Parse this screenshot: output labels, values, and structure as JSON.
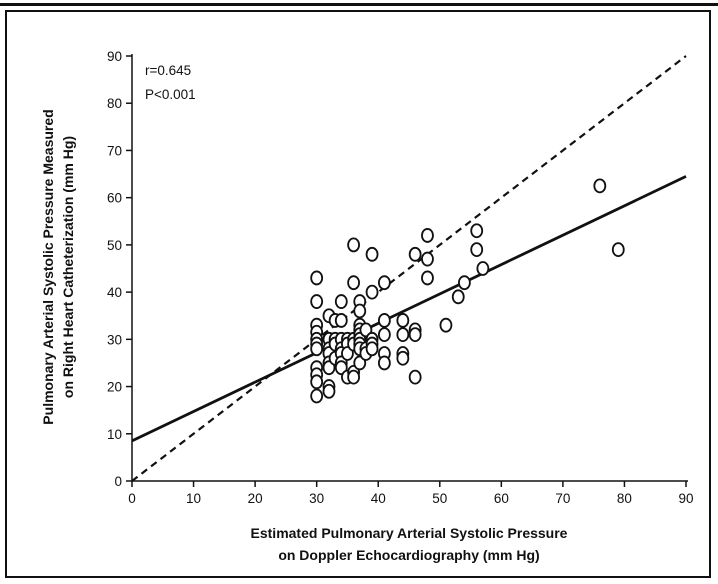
{
  "chart_data": {
    "type": "scatter",
    "xlabel_line1": "Estimated Pulmonary Arterial Systolic Pressure",
    "xlabel_line2": "on Doppler Echocardiography (mm Hg)",
    "ylabel_line1": "Pulmonary Arterial Systolic Pressure Measured",
    "ylabel_line2": "on Right Heart Catheterization (mm Hg)",
    "xlim": [
      0,
      90
    ],
    "ylim": [
      0,
      90
    ],
    "xticks": [
      "0",
      "10",
      "20",
      "30",
      "40",
      "50",
      "60",
      "70",
      "80",
      "90"
    ],
    "yticks": [
      "0",
      "10",
      "20",
      "30",
      "40",
      "50",
      "60",
      "70",
      "80",
      "90"
    ],
    "annotations": {
      "r": "r=0.645",
      "p": "P<0.001"
    },
    "grid": false,
    "lines": [
      {
        "style": "solid",
        "from": [
          0,
          8.5
        ],
        "to": [
          90,
          64.5
        ]
      },
      {
        "style": "dashed",
        "from": [
          0,
          0
        ],
        "to": [
          90,
          90
        ]
      }
    ],
    "points": [
      [
        30,
        43
      ],
      [
        30,
        38
      ],
      [
        30,
        33
      ],
      [
        30,
        31.5
      ],
      [
        30,
        30
      ],
      [
        30,
        29
      ],
      [
        30,
        28
      ],
      [
        30,
        24
      ],
      [
        30,
        22.5
      ],
      [
        30,
        21
      ],
      [
        30,
        18
      ],
      [
        32,
        35
      ],
      [
        32,
        30
      ],
      [
        32,
        28
      ],
      [
        32,
        27
      ],
      [
        32,
        25
      ],
      [
        32,
        24
      ],
      [
        32,
        20
      ],
      [
        32,
        19
      ],
      [
        33,
        34
      ],
      [
        33,
        30
      ],
      [
        33,
        29
      ],
      [
        33,
        26
      ],
      [
        34,
        38
      ],
      [
        34,
        34
      ],
      [
        34,
        30
      ],
      [
        34,
        28
      ],
      [
        34,
        27
      ],
      [
        34,
        25
      ],
      [
        34,
        24
      ],
      [
        35,
        30
      ],
      [
        35,
        29
      ],
      [
        35,
        27
      ],
      [
        35,
        22
      ],
      [
        36,
        50
      ],
      [
        36,
        42
      ],
      [
        36,
        30
      ],
      [
        36,
        29
      ],
      [
        36,
        23
      ],
      [
        36,
        22
      ],
      [
        37,
        38
      ],
      [
        37,
        36
      ],
      [
        37,
        33
      ],
      [
        37,
        32
      ],
      [
        37,
        31
      ],
      [
        37,
        30
      ],
      [
        37,
        29
      ],
      [
        37,
        28
      ],
      [
        37,
        25
      ],
      [
        38,
        32
      ],
      [
        38,
        28
      ],
      [
        38,
        27
      ],
      [
        39,
        48
      ],
      [
        39,
        40
      ],
      [
        39,
        30
      ],
      [
        39,
        29
      ],
      [
        39,
        28
      ],
      [
        41,
        42
      ],
      [
        41,
        34
      ],
      [
        41,
        31
      ],
      [
        41,
        27
      ],
      [
        41,
        25
      ],
      [
        44,
        34
      ],
      [
        44,
        31
      ],
      [
        44,
        27
      ],
      [
        44,
        26
      ],
      [
        46,
        48
      ],
      [
        46,
        32
      ],
      [
        46,
        31
      ],
      [
        46,
        22
      ],
      [
        48,
        52
      ],
      [
        48,
        47
      ],
      [
        48,
        43
      ],
      [
        51,
        33
      ],
      [
        53,
        39
      ],
      [
        54,
        42
      ],
      [
        56,
        53
      ],
      [
        56,
        49
      ],
      [
        57,
        45
      ],
      [
        76,
        62.5
      ],
      [
        79,
        49
      ]
    ]
  }
}
